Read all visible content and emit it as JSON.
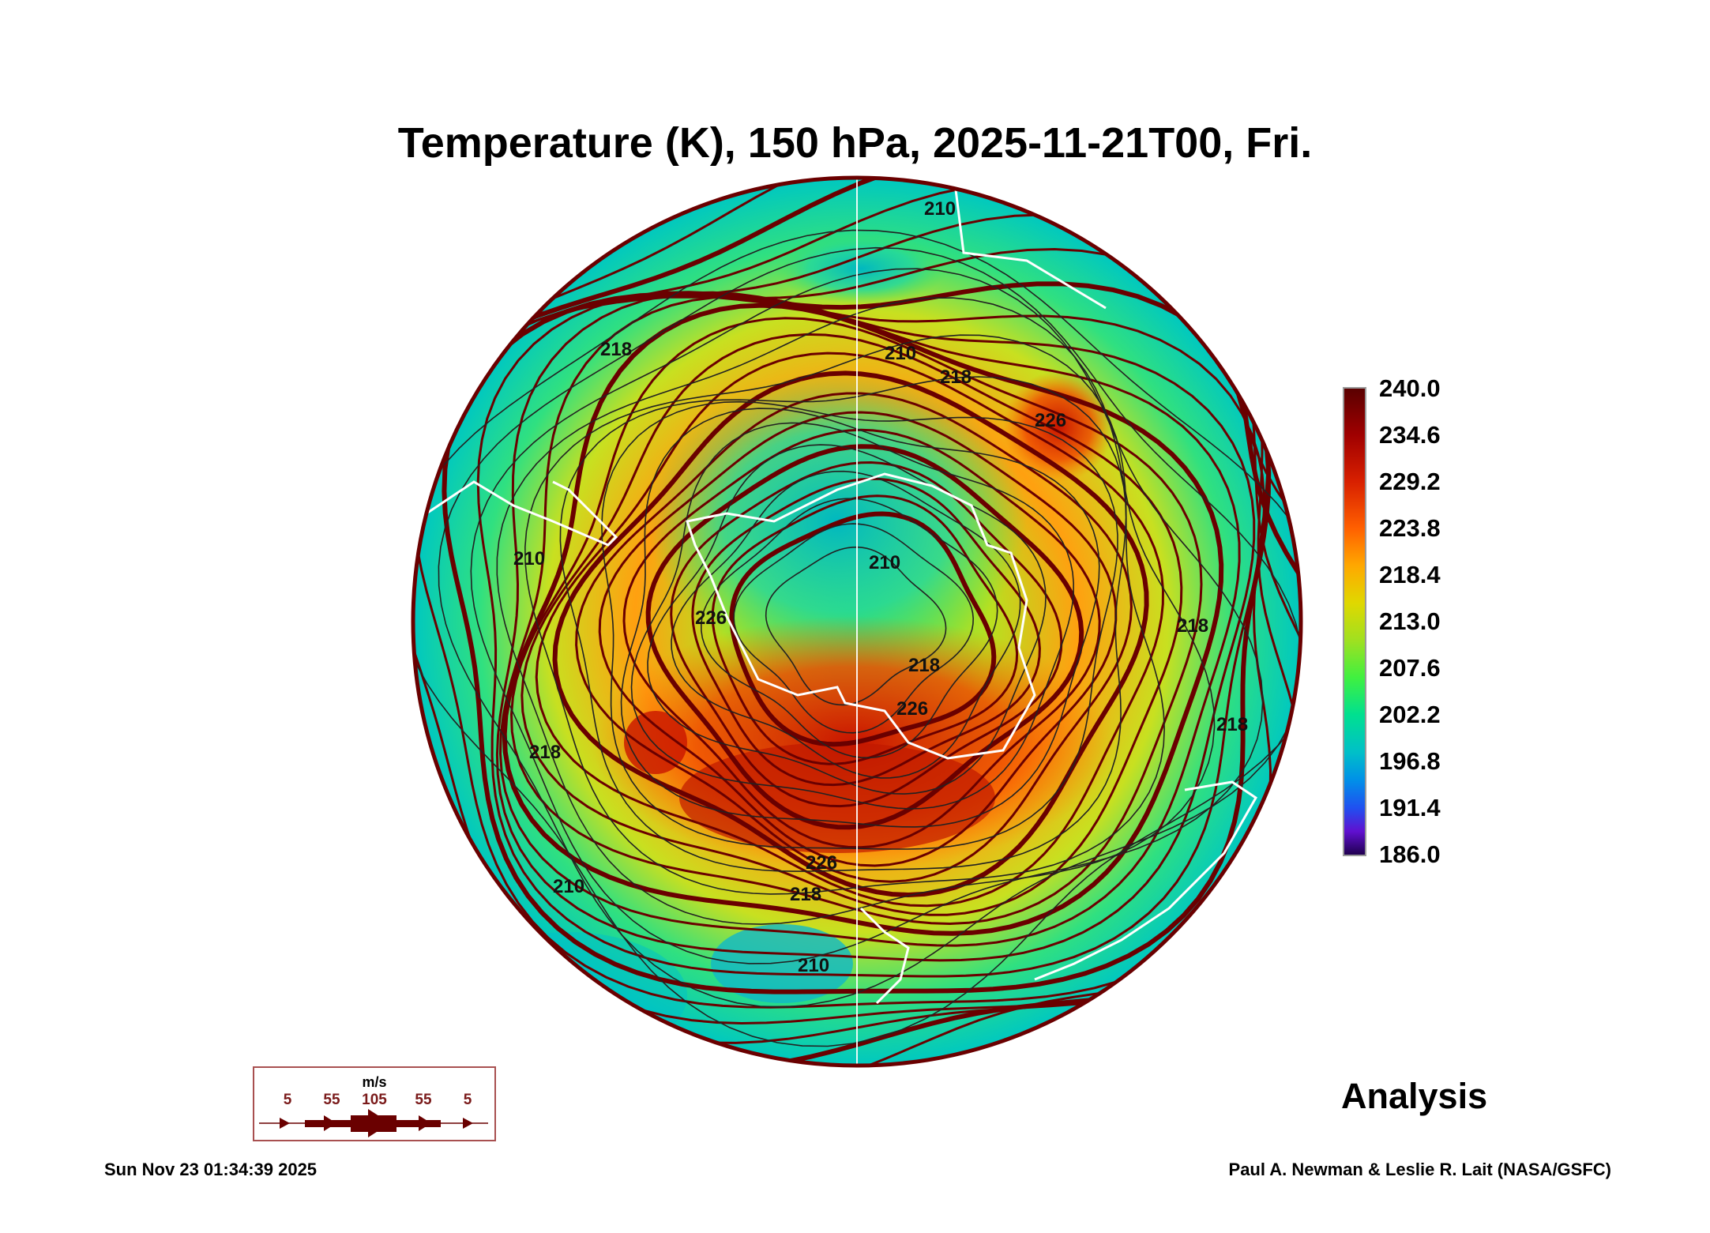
{
  "title": "Temperature (K), 150 hPa, 2025-11-21T00, Fri.",
  "chart_data": {
    "type": "heatmap",
    "title": "Temperature (K), 150 hPa, 2025-11-21T00, Fri.",
    "projection": "polar stereographic (south pole)",
    "variable": "Temperature (K)",
    "level": "150 hPa",
    "colorbar": {
      "range": [
        186.0,
        240.0
      ],
      "ticks": [
        "240.0",
        "234.6",
        "229.2",
        "223.8",
        "218.4",
        "213.0",
        "207.6",
        "202.2",
        "196.8",
        "191.4",
        "186.0"
      ]
    },
    "contour_labels": [
      "210",
      "210",
      "218",
      "226",
      "210",
      "218",
      "226",
      "218",
      "226",
      "210",
      "218",
      "226",
      "218",
      "210",
      "218",
      "218",
      "210"
    ],
    "wind_legend": {
      "unit": "m/s",
      "values": [
        "5",
        "55",
        "105",
        "55",
        "5"
      ]
    }
  },
  "colors": {
    "streamline": "#6a0000",
    "coast": "#ffffff"
  },
  "label": "Analysis",
  "footer": {
    "timestamp": "Sun Nov 23 01:34:39 2025",
    "credit": "Paul A. Newman & Leslie R. Lait (NASA/GSFC)"
  }
}
